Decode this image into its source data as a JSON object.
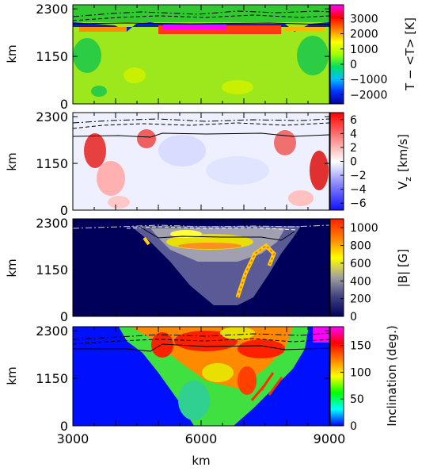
{
  "figure": {
    "x_axis": {
      "label": "km",
      "ticks": [
        "3000",
        "6000",
        "9000"
      ],
      "range": [
        3000,
        9000
      ]
    }
  },
  "chart_data": [
    {
      "type": "heatmap",
      "panel": "temperature-difference",
      "ylabel": "km",
      "y_ticks": [
        "0",
        "1150",
        "2300"
      ],
      "ylim": [
        0,
        2400
      ],
      "colorbar": {
        "label": "T − <T>   [K]",
        "ticks": [
          "3000",
          "2000",
          "1000",
          "0",
          "−1000",
          "−2000"
        ],
        "range": [
          -2600,
          3900
        ],
        "colormap": [
          "#0000a0",
          "#0030ff",
          "#00c0ff",
          "#00e060",
          "#a0ff00",
          "#ffff00",
          "#ff8000",
          "#ff0000",
          "#ff00ff"
        ]
      }
    },
    {
      "type": "heatmap",
      "panel": "vertical-velocity",
      "ylabel": "km",
      "y_ticks": [
        "0",
        "1150",
        "2300"
      ],
      "ylim": [
        0,
        2400
      ],
      "colorbar": {
        "label_main": "V",
        "label_sub": "z",
        "label_unit": "[km/s]",
        "ticks": [
          "6",
          "4",
          "2",
          "0",
          "−2",
          "−4",
          "−6"
        ],
        "range": [
          -7,
          7
        ],
        "colormap": [
          "#1010ff",
          "#8080ff",
          "#ffffff",
          "#ff8080",
          "#ff0000"
        ]
      }
    },
    {
      "type": "heatmap",
      "panel": "field-strength",
      "ylabel": "km",
      "y_ticks": [
        "0",
        "1150",
        "2300"
      ],
      "ylim": [
        0,
        2400
      ],
      "colorbar": {
        "label": "|B|  [G]",
        "ticks": [
          "1000",
          "800",
          "600",
          "400",
          "200",
          "0"
        ],
        "range": [
          0,
          1100
        ],
        "colormap": [
          "#00005a",
          "#404080",
          "#a0a0a0",
          "#ffff00",
          "#ff8000",
          "#ff2000"
        ]
      }
    },
    {
      "type": "heatmap",
      "panel": "inclination",
      "ylabel": "km",
      "y_ticks": [
        "0",
        "1150",
        "2300"
      ],
      "ylim": [
        0,
        2400
      ],
      "colorbar": {
        "label": "Inclination  (deg.)",
        "ticks": [
          "150",
          "100",
          "50",
          "0"
        ],
        "range": [
          0,
          185
        ],
        "colormap": [
          "#0000ff",
          "#00ffff",
          "#00ff00",
          "#ffff00",
          "#ff8000",
          "#ff0000",
          "#ff00ff"
        ]
      }
    }
  ]
}
